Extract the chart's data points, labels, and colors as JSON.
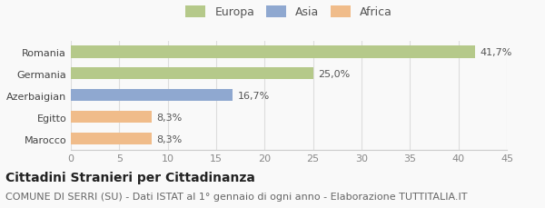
{
  "categories": [
    "Romania",
    "Germania",
    "Azerbaigian",
    "Egitto",
    "Marocco"
  ],
  "values": [
    41.7,
    25.0,
    16.7,
    8.3,
    8.3
  ],
  "colors": [
    "#b5c98a",
    "#b5c98a",
    "#8fa8d0",
    "#f0bc8a",
    "#f0bc8a"
  ],
  "labels": [
    "41,7%",
    "25,0%",
    "16,7%",
    "8,3%",
    "8,3%"
  ],
  "legend_labels": [
    "Europa",
    "Asia",
    "Africa"
  ],
  "legend_colors": [
    "#b5c98a",
    "#8fa8d0",
    "#f0bc8a"
  ],
  "xlim": [
    0,
    45
  ],
  "xticks": [
    0,
    5,
    10,
    15,
    20,
    25,
    30,
    35,
    40,
    45
  ],
  "title_bold": "Cittadini Stranieri per Cittadinanza",
  "subtitle": "COMUNE DI SERRI (SU) - Dati ISTAT al 1° gennaio di ogni anno - Elaborazione TUTTITALIA.IT",
  "bg_color": "#f9f9f9",
  "bar_height": 0.55,
  "title_fontsize": 10,
  "subtitle_fontsize": 8,
  "label_fontsize": 8,
  "tick_fontsize": 8,
  "legend_fontsize": 9
}
